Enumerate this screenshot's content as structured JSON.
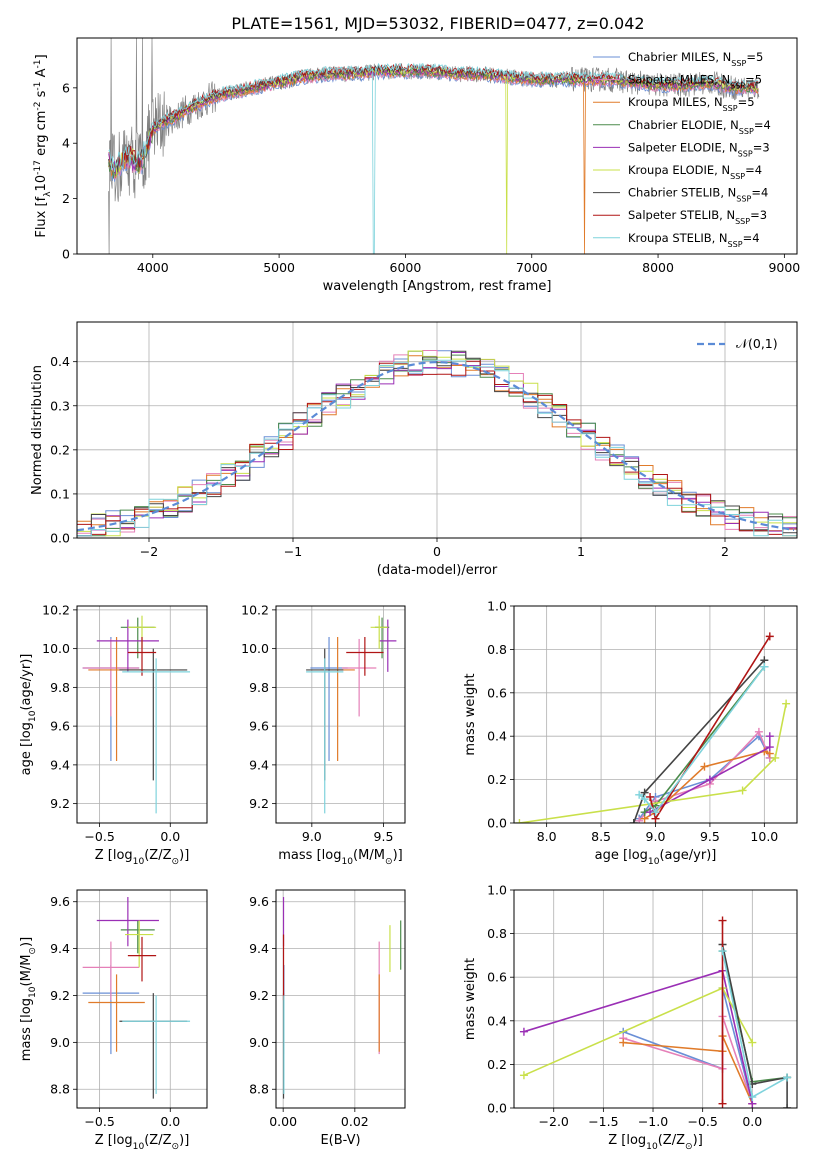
{
  "figure": {
    "title": "PLATE=1561, MJD=53032, FIBERID=0477, z=0.042"
  },
  "models": [
    {
      "name": "Chabrier MILES, N$_{SSP}$=5",
      "color": "#6a8fd6"
    },
    {
      "name": "Salpeter MILES, N$_{SSP}$=5",
      "color": "#e580b8"
    },
    {
      "name": "Kroupa MILES, N$_{SSP}$=5",
      "color": "#e07b2a"
    },
    {
      "name": "Chabrier ELODIE, N$_{SSP}$=4",
      "color": "#4c8c4c"
    },
    {
      "name": "Salpeter ELODIE, N$_{SSP}$=3",
      "color": "#9a2fb5"
    },
    {
      "name": "Kroupa ELODIE, N$_{SSP}$=4",
      "color": "#c9e04a"
    },
    {
      "name": "Chabrier STELIB, N$_{SSP}$=4",
      "color": "#444444"
    },
    {
      "name": "Salpeter STELIB, N$_{SSP}$=3",
      "color": "#b01515"
    },
    {
      "name": "Kroupa STELIB, N$_{SSP}$=4",
      "color": "#7fd3dc"
    }
  ],
  "chart_data": [
    {
      "id": "spectrum",
      "type": "line",
      "xlabel": "wavelength [Angstrom, rest frame]",
      "ylabel": "Flux [f$_\\lambda$10$^{-17}$ erg cm$^{-2}$ s$^{-1}$ A$^{-1}$]",
      "xlim": [
        3400,
        9100
      ],
      "ylim": [
        0,
        7.8
      ],
      "xticks": [
        4000,
        5000,
        6000,
        7000,
        8000,
        9000
      ],
      "yticks": [
        0,
        2,
        4,
        6
      ],
      "data_color": "#808080",
      "legend_placement": "upper right",
      "grid": false,
      "continuum": {
        "x": [
          3650,
          3700,
          3800,
          3900,
          3950,
          4000,
          4100,
          4200,
          4300,
          4400,
          4500,
          4600,
          4800,
          5000,
          5200,
          5400,
          5600,
          5800,
          6000,
          6200,
          6400,
          6600,
          6800,
          7000,
          7200,
          7400,
          7600,
          7800,
          8000,
          8200,
          8400,
          8600,
          8800
        ],
        "y": [
          3.4,
          3.0,
          3.5,
          3.2,
          3.8,
          4.5,
          4.8,
          5.0,
          5.3,
          5.5,
          5.7,
          5.8,
          6.0,
          6.2,
          6.4,
          6.5,
          6.5,
          6.6,
          6.6,
          6.6,
          6.5,
          6.5,
          6.4,
          6.3,
          6.3,
          6.3,
          6.3,
          6.2,
          6.1,
          6.1,
          6.2,
          6.0,
          6.0
        ]
      },
      "dropouts": [
        {
          "x": 5750,
          "model": "Kroupa STELIB, N$_{SSP}$=4"
        },
        {
          "x": 6800,
          "model": "Kroupa ELODIE, N$_{SSP}$=4"
        },
        {
          "x": 7420,
          "model": "Kroupa MILES, N$_{SSP}$=5"
        }
      ]
    },
    {
      "id": "residuals",
      "type": "histogram",
      "xlabel": "(data-model)/error",
      "ylabel": "Normed distribution",
      "xlim": [
        -2.5,
        2.5
      ],
      "ylim": [
        0,
        0.49
      ],
      "xticks": [
        -2,
        -1,
        0,
        1,
        2
      ],
      "yticks": [
        0,
        0.1,
        0.2,
        0.3,
        0.4
      ],
      "grid": true,
      "bin_width": 0.1,
      "reference_curve": {
        "label": "$\\mathcal{N}(0,1)$",
        "color": "#5b8bd6",
        "mean": 0,
        "sigma": 1
      }
    },
    {
      "id": "age_vs_Z",
      "type": "errorbar",
      "xlabel": "Z [log$_{10}$(Z/Z$_\\odot$)]",
      "ylabel": "age  [log$_{10}$(age/yr)]",
      "xlim": [
        -0.66,
        0.26
      ],
      "ylim": [
        9.1,
        10.22
      ],
      "xticks": [
        -0.5,
        0.0
      ],
      "yticks": [
        9.2,
        9.4,
        9.6,
        9.8,
        10.0,
        10.2
      ],
      "grid": true,
      "points": [
        {
          "x": -0.42,
          "y": 9.9,
          "xerr": 0.2,
          "ylo": 9.42,
          "yhi": 10.06,
          "c": 0
        },
        {
          "x": -0.42,
          "y": 9.9,
          "xerr": 0.2,
          "ylo": 9.65,
          "yhi": 10.05,
          "c": 1
        },
        {
          "x": -0.38,
          "y": 9.89,
          "xerr": 0.2,
          "ylo": 9.42,
          "yhi": 10.06,
          "c": 2
        },
        {
          "x": -0.23,
          "y": 10.11,
          "xerr": 0.12,
          "ylo": 9.95,
          "yhi": 10.16,
          "c": 3
        },
        {
          "x": -0.3,
          "y": 10.04,
          "xerr": 0.22,
          "ylo": 9.88,
          "yhi": 10.15,
          "c": 4
        },
        {
          "x": -0.2,
          "y": 10.11,
          "xerr": 0.1,
          "ylo": 10.0,
          "yhi": 10.17,
          "c": 5
        },
        {
          "x": -0.12,
          "y": 9.89,
          "xerr": 0.24,
          "ylo": 9.32,
          "yhi": 10.0,
          "c": 6
        },
        {
          "x": -0.2,
          "y": 9.98,
          "xerr": 0.1,
          "ylo": 9.86,
          "yhi": 10.06,
          "c": 7
        },
        {
          "x": -0.1,
          "y": 9.88,
          "xerr": 0.24,
          "ylo": 9.15,
          "yhi": 9.95,
          "c": 8
        }
      ]
    },
    {
      "id": "age_vs_mass",
      "type": "errorbar",
      "xlabel": "mass [log$_{10}$(M/M$_\\odot$)]",
      "ylabel": "",
      "xlim": [
        8.75,
        9.65
      ],
      "ylim": [
        9.1,
        10.22
      ],
      "xticks": [
        9.0,
        9.5
      ],
      "yticks": [
        9.2,
        9.4,
        9.6,
        9.8,
        10.0,
        10.2
      ],
      "grid": true,
      "points": [
        {
          "x": 9.12,
          "y": 9.9,
          "xerr": 0.13,
          "ylo": 9.42,
          "yhi": 10.06,
          "c": 0
        },
        {
          "x": 9.33,
          "y": 9.9,
          "xerr": 0.12,
          "ylo": 9.65,
          "yhi": 10.05,
          "c": 1
        },
        {
          "x": 9.18,
          "y": 9.89,
          "xerr": 0.12,
          "ylo": 9.42,
          "yhi": 10.06,
          "c": 2
        },
        {
          "x": 9.49,
          "y": 10.11,
          "xerr": 0.05,
          "ylo": 9.95,
          "yhi": 10.16,
          "c": 3
        },
        {
          "x": 9.53,
          "y": 10.04,
          "xerr": 0.06,
          "ylo": 9.88,
          "yhi": 10.15,
          "c": 4
        },
        {
          "x": 9.47,
          "y": 10.11,
          "xerr": 0.06,
          "ylo": 10.0,
          "yhi": 10.17,
          "c": 5
        },
        {
          "x": 9.09,
          "y": 9.89,
          "xerr": 0.13,
          "ylo": 9.32,
          "yhi": 10.0,
          "c": 6
        },
        {
          "x": 9.37,
          "y": 9.98,
          "xerr": 0.13,
          "ylo": 9.86,
          "yhi": 10.06,
          "c": 7
        },
        {
          "x": 9.09,
          "y": 9.88,
          "xerr": 0.13,
          "ylo": 9.15,
          "yhi": 9.95,
          "c": 8
        }
      ]
    },
    {
      "id": "mass_weight_vs_age",
      "type": "line",
      "xlabel": "age  [log$_{10}$(age/yr)]",
      "ylabel": "mass weight",
      "xlim": [
        7.7,
        10.3
      ],
      "ylim": [
        0,
        1.0
      ],
      "xticks": [
        8.0,
        8.5,
        9.0,
        9.5,
        10.0
      ],
      "yticks": [
        0.0,
        0.2,
        0.4,
        0.6,
        0.8,
        1.0
      ],
      "grid": true,
      "series": [
        {
          "c": 0,
          "x": [
            8.85,
            9.0,
            9.5,
            9.95,
            10.05
          ],
          "y": [
            0.02,
            0.12,
            0.2,
            0.4,
            0.3
          ]
        },
        {
          "c": 1,
          "x": [
            8.85,
            9.0,
            9.5,
            9.95,
            10.05
          ],
          "y": [
            0.01,
            0.1,
            0.18,
            0.42,
            0.3
          ]
        },
        {
          "c": 2,
          "x": [
            8.9,
            9.0,
            9.45,
            10.0,
            10.05
          ],
          "y": [
            0.02,
            0.05,
            0.26,
            0.33,
            0.32
          ]
        },
        {
          "c": 3,
          "x": [
            8.9,
            9.0,
            10.0
          ],
          "y": [
            0.05,
            0.08,
            0.72
          ]
        },
        {
          "c": 4,
          "x": [
            8.95,
            9.5,
            10.05,
            10.05
          ],
          "y": [
            0.05,
            0.2,
            0.35,
            0.4
          ]
        },
        {
          "c": 5,
          "x": [
            7.75,
            9.8,
            10.1,
            10.2
          ],
          "y": [
            0.0,
            0.15,
            0.3,
            0.55
          ]
        },
        {
          "c": 6,
          "x": [
            8.8,
            8.9,
            10.0
          ],
          "y": [
            0.0,
            0.14,
            0.75
          ]
        },
        {
          "c": 7,
          "x": [
            8.95,
            9.0,
            10.05
          ],
          "y": [
            0.12,
            0.02,
            0.86
          ]
        },
        {
          "c": 8,
          "x": [
            8.85,
            8.9,
            9.0,
            10.0
          ],
          "y": [
            0.13,
            0.11,
            0.05,
            0.72
          ]
        }
      ]
    },
    {
      "id": "mass_vs_Z",
      "type": "errorbar",
      "xlabel": "Z [log$_{10}$(Z/Z$_\\odot$)]",
      "ylabel": "mass [log$_{10}$(M/M$_\\odot$)]",
      "xlim": [
        -0.66,
        0.26
      ],
      "ylim": [
        8.72,
        9.65
      ],
      "xticks": [
        -0.5,
        0.0
      ],
      "yticks": [
        8.8,
        9.0,
        9.2,
        9.4,
        9.6
      ],
      "grid": true,
      "points": [
        {
          "x": -0.42,
          "y": 9.21,
          "xerr": 0.2,
          "ylo": 8.95,
          "yhi": 9.33,
          "c": 0
        },
        {
          "x": -0.42,
          "y": 9.32,
          "xerr": 0.2,
          "ylo": 9.18,
          "yhi": 9.43,
          "c": 1
        },
        {
          "x": -0.38,
          "y": 9.17,
          "xerr": 0.2,
          "ylo": 8.96,
          "yhi": 9.29,
          "c": 2
        },
        {
          "x": -0.23,
          "y": 9.48,
          "xerr": 0.12,
          "ylo": 9.38,
          "yhi": 9.52,
          "c": 3
        },
        {
          "x": -0.3,
          "y": 9.52,
          "xerr": 0.22,
          "ylo": 9.41,
          "yhi": 9.62,
          "c": 4
        },
        {
          "x": -0.22,
          "y": 9.46,
          "xerr": 0.1,
          "ylo": 9.32,
          "yhi": 9.52,
          "c": 5
        },
        {
          "x": -0.12,
          "y": 9.09,
          "xerr": 0.24,
          "ylo": 8.76,
          "yhi": 9.21,
          "c": 6
        },
        {
          "x": -0.2,
          "y": 9.37,
          "xerr": 0.1,
          "ylo": 9.26,
          "yhi": 9.45,
          "c": 7
        },
        {
          "x": -0.1,
          "y": 9.09,
          "xerr": 0.24,
          "ylo": 8.78,
          "yhi": 9.2,
          "c": 8
        }
      ]
    },
    {
      "id": "mass_vs_EBV",
      "type": "errorbar",
      "xlabel": "E(B-V)",
      "ylabel": "",
      "xlim": [
        -0.002,
        0.034
      ],
      "ylim": [
        8.72,
        9.65
      ],
      "xticks": [
        0.0,
        0.02
      ],
      "yticks": [
        8.8,
        9.0,
        9.2,
        9.4,
        9.6
      ],
      "grid": true,
      "points": [
        {
          "x": 0.0002,
          "y": 9.21,
          "ylo": 8.95,
          "yhi": 9.33,
          "c": 0
        },
        {
          "x": 0.0268,
          "y": 9.32,
          "ylo": 8.95,
          "yhi": 9.43,
          "c": 1
        },
        {
          "x": 0.0268,
          "y": 9.17,
          "ylo": 8.96,
          "yhi": 9.29,
          "c": 2
        },
        {
          "x": 0.0328,
          "y": 9.48,
          "ylo": 9.31,
          "yhi": 9.52,
          "c": 3
        },
        {
          "x": 0.0001,
          "y": 9.52,
          "ylo": 9.41,
          "yhi": 9.62,
          "c": 4
        },
        {
          "x": 0.0298,
          "y": 9.46,
          "ylo": 9.3,
          "yhi": 9.5,
          "c": 5
        },
        {
          "x": 0.0001,
          "y": 9.09,
          "ylo": 8.76,
          "yhi": 9.21,
          "c": 6
        },
        {
          "x": 0.0001,
          "y": 9.37,
          "ylo": 9.18,
          "yhi": 9.46,
          "c": 7
        },
        {
          "x": 0.0002,
          "y": 9.09,
          "ylo": 8.78,
          "yhi": 9.2,
          "c": 8
        }
      ]
    },
    {
      "id": "mass_weight_vs_Z",
      "type": "line",
      "xlabel": "Z [log$_{10}$(Z/Z$_\\odot$)]",
      "ylabel": "mass weight",
      "xlim": [
        -2.4,
        0.45
      ],
      "ylim": [
        0,
        1.0
      ],
      "xticks": [
        -2.0,
        -1.5,
        -1.0,
        -0.5,
        0.0
      ],
      "yticks": [
        0.0,
        0.2,
        0.4,
        0.6,
        0.8,
        1.0
      ],
      "grid": true,
      "series": [
        {
          "c": 0,
          "x": [
            -1.3,
            -0.3,
            -0.3,
            0.0
          ],
          "y": [
            0.35,
            0.18,
            0.55,
            0.02
          ]
        },
        {
          "c": 1,
          "x": [
            -1.3,
            -0.3,
            -0.3,
            0.0
          ],
          "y": [
            0.32,
            0.18,
            0.42,
            0.02
          ]
        },
        {
          "c": 2,
          "x": [
            -1.3,
            -0.3,
            -0.3,
            0.0
          ],
          "y": [
            0.3,
            0.26,
            0.33,
            0.02
          ]
        },
        {
          "c": 3,
          "x": [
            -0.3,
            0.0,
            0.35
          ],
          "y": [
            0.72,
            0.12,
            0.14
          ]
        },
        {
          "c": 4,
          "x": [
            -2.3,
            -0.3,
            0.0
          ],
          "y": [
            0.35,
            0.63,
            0.02
          ]
        },
        {
          "c": 5,
          "x": [
            -2.3,
            -0.3,
            0.0
          ],
          "y": [
            0.15,
            0.55,
            0.3
          ]
        },
        {
          "c": 6,
          "x": [
            -0.3,
            0.0,
            0.35,
            0.35
          ],
          "y": [
            0.75,
            0.11,
            0.14,
            0.0
          ]
        },
        {
          "c": 7,
          "x": [
            -0.3,
            -0.3
          ],
          "y": [
            0.86,
            0.02
          ]
        },
        {
          "c": 8,
          "x": [
            -0.3,
            0.0,
            0.35
          ],
          "y": [
            0.72,
            0.05,
            0.14
          ]
        }
      ]
    }
  ]
}
